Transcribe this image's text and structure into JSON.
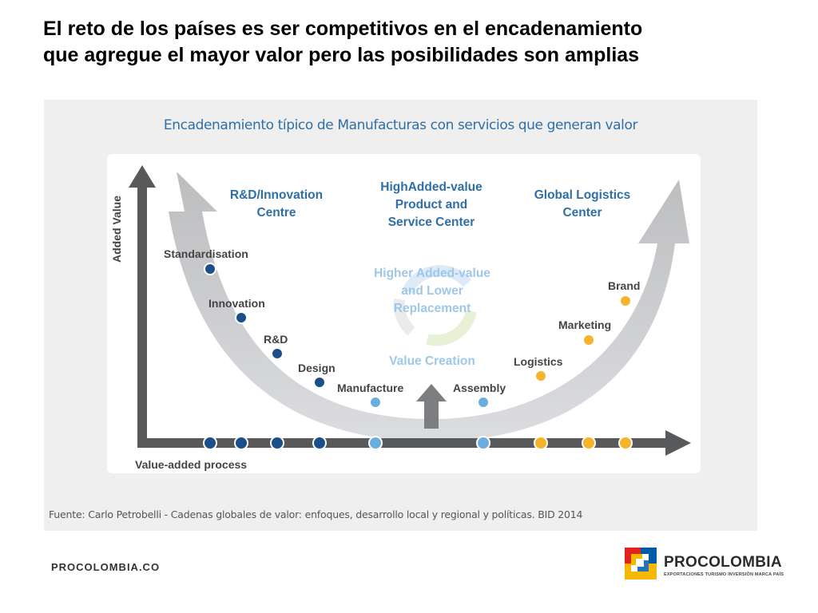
{
  "slide": {
    "title_line1": "El reto de los países es ser competitivos en el encadenamiento",
    "title_line2": "que agregue el mayor valor pero las posibilidades son amplias"
  },
  "diagram": {
    "title": "Encadenamiento típico de Manufacturas con servicios que generan valor",
    "y_axis_label": "Added Value",
    "x_axis_label": "Value-added process",
    "headings": {
      "rnd_line1": "R&D/Innovation",
      "rnd_line2": "Centre",
      "center_line1": "HighAdded-value",
      "center_line2": "Product and",
      "center_line3": "Service Center",
      "logistics_line1": "Global Logistics",
      "logistics_line2": "Center"
    },
    "center_text": {
      "line1": "Higher Added-value",
      "line2": "and Lower",
      "line3": "Replacement",
      "value_creation": "Value Creation"
    },
    "stages": [
      {
        "label": "Standardisation",
        "group": "upstream"
      },
      {
        "label": "Innovation",
        "group": "upstream"
      },
      {
        "label": "R&D",
        "group": "upstream"
      },
      {
        "label": "Design",
        "group": "upstream"
      },
      {
        "label": "Manufacture",
        "group": "production"
      },
      {
        "label": "Assembly",
        "group": "production"
      },
      {
        "label": "Logistics",
        "group": "downstream"
      },
      {
        "label": "Marketing",
        "group": "downstream"
      },
      {
        "label": "Brand",
        "group": "downstream"
      }
    ],
    "colors": {
      "upstream": "#1b4f8c",
      "production": "#6aaee0",
      "downstream": "#f6b42a",
      "arrow": "#cfd0d2",
      "axis": "#58595b",
      "heading": "#2e6fa7",
      "center_text": "#9ec7ea"
    },
    "source": "Fuente: Carlo Petrobelli - Cadenas globales de valor: enfoques, desarrollo local y regional y políticas. BID 2014"
  },
  "footer": {
    "site": "PROCOLOMBIA.CO",
    "brand_name": "PROCOLOMBIA",
    "brand_tagline": "EXPORTACIONES TURISMO INVERSIÓN MARCA PAÍS",
    "logo_icon": "procolombia-logo-icon"
  }
}
